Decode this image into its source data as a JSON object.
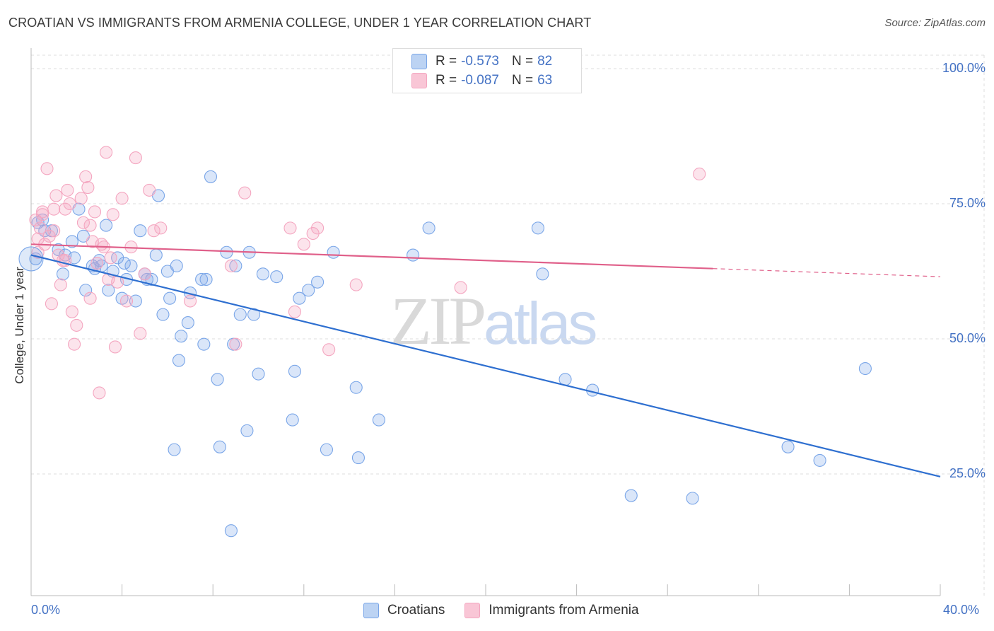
{
  "chart_data": {
    "type": "scatter",
    "title": "CROATIAN VS IMMIGRANTS FROM ARMENIA COLLEGE, UNDER 1 YEAR CORRELATION CHART",
    "source": "Source: ZipAtlas.com",
    "xlabel": "",
    "ylabel": "College, Under 1 year",
    "xlim": [
      0,
      40
    ],
    "ylim": [
      0,
      105
    ],
    "x_tick_labels": [
      "0.0%",
      "40.0%"
    ],
    "y_ticks": [
      25,
      50,
      75,
      100
    ],
    "y_tick_labels": [
      "25.0%",
      "50.0%",
      "75.0%",
      "100.0%"
    ],
    "grid": true,
    "legend_position": "top-center",
    "series": [
      {
        "name": "Croatians",
        "color": "#7aa6e8",
        "line_color": "#2e6fd0",
        "R": "-0.573",
        "N": "82",
        "trend": {
          "x0": 0,
          "y0": 65.5,
          "x1": 40,
          "y1": 24.5,
          "dashed_from": null
        },
        "points": [
          [
            0.2,
            64.8
          ],
          [
            0.3,
            71.5
          ],
          [
            0.5,
            72
          ],
          [
            0.6,
            70
          ],
          [
            0.9,
            70
          ],
          [
            1.2,
            66.5
          ],
          [
            1.4,
            62
          ],
          [
            1.5,
            65.5
          ],
          [
            1.8,
            68
          ],
          [
            1.9,
            65
          ],
          [
            2.1,
            74
          ],
          [
            2.3,
            69
          ],
          [
            2.4,
            59
          ],
          [
            2.7,
            63.5
          ],
          [
            2.8,
            63
          ],
          [
            3.0,
            64.5
          ],
          [
            3.1,
            63.5
          ],
          [
            3.3,
            71
          ],
          [
            3.4,
            59
          ],
          [
            3.6,
            62.5
          ],
          [
            3.8,
            65
          ],
          [
            4.0,
            57.5
          ],
          [
            4.1,
            64
          ],
          [
            4.2,
            61
          ],
          [
            4.4,
            63.5
          ],
          [
            4.6,
            57
          ],
          [
            4.8,
            70
          ],
          [
            5.0,
            62
          ],
          [
            5.1,
            61
          ],
          [
            5.3,
            61
          ],
          [
            5.5,
            65.5
          ],
          [
            5.6,
            76.5
          ],
          [
            5.8,
            54.5
          ],
          [
            6.0,
            62.5
          ],
          [
            6.1,
            57.5
          ],
          [
            6.4,
            63.5
          ],
          [
            6.6,
            50.5
          ],
          [
            6.9,
            53
          ],
          [
            7.0,
            58.5
          ],
          [
            7.5,
            61
          ],
          [
            7.6,
            49
          ],
          [
            7.7,
            61
          ],
          [
            7.9,
            80
          ],
          [
            8.2,
            42.5
          ],
          [
            8.3,
            30
          ],
          [
            8.6,
            66
          ],
          [
            8.8,
            14.5
          ],
          [
            8.9,
            49
          ],
          [
            9.0,
            63.5
          ],
          [
            9.2,
            54.5
          ],
          [
            9.5,
            33
          ],
          [
            9.6,
            66
          ],
          [
            9.8,
            54.5
          ],
          [
            10.0,
            43.5
          ],
          [
            10.2,
            62
          ],
          [
            6.5,
            46
          ],
          [
            6.3,
            29.5
          ],
          [
            10.8,
            61.5
          ],
          [
            11.5,
            35
          ],
          [
            11.6,
            44
          ],
          [
            11.8,
            57.5
          ],
          [
            12.2,
            59
          ],
          [
            12.6,
            60.5
          ],
          [
            13.0,
            29.5
          ],
          [
            13.3,
            66
          ],
          [
            14.3,
            41
          ],
          [
            14.4,
            28
          ],
          [
            15.3,
            35
          ],
          [
            16.8,
            65.5
          ],
          [
            17.5,
            70.5
          ],
          [
            22.3,
            70.5
          ],
          [
            22.5,
            62
          ],
          [
            23.5,
            42.5
          ],
          [
            24.7,
            40.5
          ],
          [
            26.4,
            21
          ],
          [
            29.1,
            20.5
          ],
          [
            33.3,
            30
          ],
          [
            34.7,
            27.5
          ],
          [
            36.7,
            44.5
          ]
        ]
      },
      {
        "name": "Immigrants from Armenia",
        "color": "#f4a6c0",
        "line_color": "#e0608a",
        "R": "-0.087",
        "N": "63",
        "trend": {
          "x0": 0,
          "y0": 67.5,
          "x1": 40,
          "y1": 61.5,
          "dashed_from": 30
        },
        "points": [
          [
            0.2,
            72
          ],
          [
            0.3,
            68.5
          ],
          [
            0.4,
            70.5
          ],
          [
            0.5,
            73
          ],
          [
            0.6,
            67.5
          ],
          [
            0.7,
            81.5
          ],
          [
            0.8,
            69
          ],
          [
            0.9,
            56.5
          ],
          [
            1.0,
            74
          ],
          [
            1.1,
            76.5
          ],
          [
            1.2,
            65.5
          ],
          [
            1.3,
            60
          ],
          [
            1.4,
            64.5
          ],
          [
            1.5,
            74
          ],
          [
            1.6,
            77.5
          ],
          [
            1.7,
            75
          ],
          [
            1.8,
            55
          ],
          [
            1.9,
            49
          ],
          [
            2.0,
            52.5
          ],
          [
            2.2,
            76
          ],
          [
            2.3,
            71.5
          ],
          [
            2.4,
            80
          ],
          [
            2.5,
            78
          ],
          [
            2.6,
            57.5
          ],
          [
            2.7,
            68
          ],
          [
            2.8,
            73.5
          ],
          [
            2.9,
            64
          ],
          [
            3.0,
            40
          ],
          [
            3.1,
            67.5
          ],
          [
            3.2,
            67
          ],
          [
            3.3,
            84.5
          ],
          [
            3.5,
            65
          ],
          [
            3.6,
            73
          ],
          [
            3.7,
            48.5
          ],
          [
            3.8,
            60.5
          ],
          [
            4.0,
            76
          ],
          [
            4.2,
            57
          ],
          [
            4.4,
            67
          ],
          [
            4.6,
            83.5
          ],
          [
            4.8,
            51
          ],
          [
            5.0,
            62
          ],
          [
            5.2,
            77.5
          ],
          [
            5.4,
            70
          ],
          [
            5.7,
            70.5
          ],
          [
            7.0,
            57
          ],
          [
            8.8,
            63.5
          ],
          [
            9.0,
            49
          ],
          [
            9.4,
            77
          ],
          [
            11.4,
            70.5
          ],
          [
            11.6,
            55
          ],
          [
            12.0,
            67.5
          ],
          [
            12.4,
            69.5
          ],
          [
            12.6,
            70.5
          ],
          [
            13.1,
            48
          ],
          [
            14.3,
            60
          ],
          [
            18.9,
            59.5
          ],
          [
            29.4,
            80.5
          ],
          [
            0.5,
            73.5
          ],
          [
            1.0,
            70
          ],
          [
            1.5,
            64.5
          ],
          [
            2.6,
            71
          ],
          [
            3.4,
            61
          ],
          [
            0.3,
            66
          ]
        ]
      }
    ]
  },
  "legend_top": {
    "rows": [
      {
        "r_label": "R =",
        "r_value": "-0.573",
        "n_label": "N =",
        "n_value": "82",
        "color": "#bcd3f3"
      },
      {
        "r_label": "R =",
        "r_value": "-0.087",
        "n_label": "N =",
        "n_value": "63",
        "color": "#f9c6d6"
      }
    ]
  },
  "legend_bottom": {
    "items": [
      {
        "label": "Croatians",
        "color": "#bcd3f3"
      },
      {
        "label": "Immigrants from Armenia",
        "color": "#f9c6d6"
      }
    ]
  },
  "watermark": {
    "zip": "ZIP",
    "atlas": "atlas"
  }
}
